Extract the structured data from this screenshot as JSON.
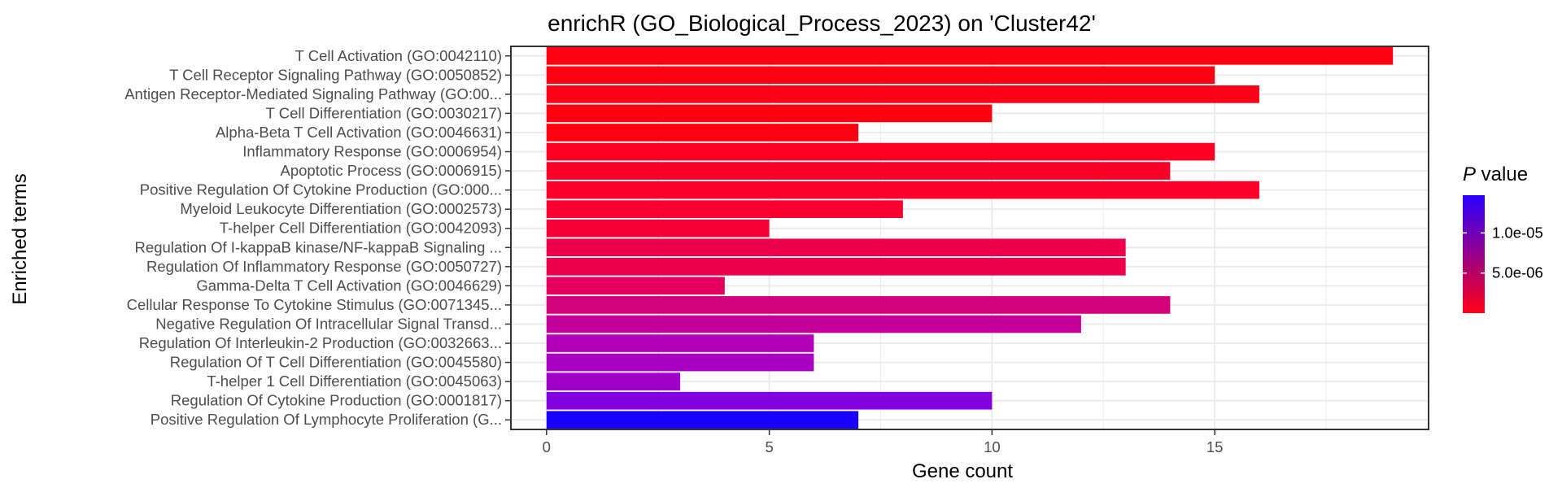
{
  "chart_data": {
    "type": "bar",
    "orientation": "horizontal",
    "title": "enrichR (GO_Biological_Process_2023) on 'Cluster42'",
    "xlabel": "Gene count",
    "ylabel": "Enriched terms",
    "xlim": [
      -0.8,
      19.8
    ],
    "x_ticks": [
      0,
      5,
      10,
      15
    ],
    "grid": true,
    "categories": [
      "T Cell Activation (GO:0042110)",
      "T Cell Receptor Signaling Pathway (GO:0050852)",
      "Antigen Receptor-Mediated Signaling Pathway (GO:00...",
      "T Cell Differentiation (GO:0030217)",
      "Alpha-Beta T Cell Activation (GO:0046631)",
      "Inflammatory Response (GO:0006954)",
      "Apoptotic Process (GO:0006915)",
      "Positive Regulation Of Cytokine Production (GO:000...",
      "Myeloid Leukocyte Differentiation (GO:0002573)",
      "T-helper Cell Differentiation (GO:0042093)",
      "Regulation Of I-kappaB kinase/NF-kappaB Signaling ...",
      "Regulation Of Inflammatory Response (GO:0050727)",
      "Gamma-Delta T Cell Activation (GO:0046629)",
      "Cellular Response To Cytokine Stimulus (GO:0071345...",
      "Negative Regulation Of Intracellular Signal Transd...",
      "Regulation Of Interleukin-2 Production (GO:0032663...",
      "Regulation Of T Cell Differentiation (GO:0045580)",
      "T-helper 1 Cell Differentiation (GO:0045063)",
      "Regulation Of Cytokine Production (GO:0001817)",
      "Positive Regulation Of Lymphocyte Proliferation (G..."
    ],
    "values": [
      19,
      15,
      16,
      10,
      7,
      15,
      14,
      16,
      8,
      5,
      13,
      13,
      4,
      14,
      12,
      6,
      6,
      3,
      10,
      7
    ],
    "colors": [
      "#ff0012",
      "#ff0012",
      "#ff0016",
      "#ff0010",
      "#ff0010",
      "#fc0024",
      "#fa0028",
      "#fa002a",
      "#f80030",
      "#f60038",
      "#ed004c",
      "#ed004c",
      "#e3005e",
      "#d3007e",
      "#c5009a",
      "#b300b8",
      "#aa00c4",
      "#a100ca",
      "#8500e0",
      "#1a00ff"
    ],
    "legend": {
      "title_italic": "P",
      "title_rest": " value",
      "position": "right",
      "gradient_top": "#2a00ff",
      "gradient_bottom": "#ff0016",
      "tick_labels": [
        "1.0e-05",
        "5.0e-06"
      ],
      "tick_fractions": [
        0.32,
        0.66
      ]
    }
  }
}
